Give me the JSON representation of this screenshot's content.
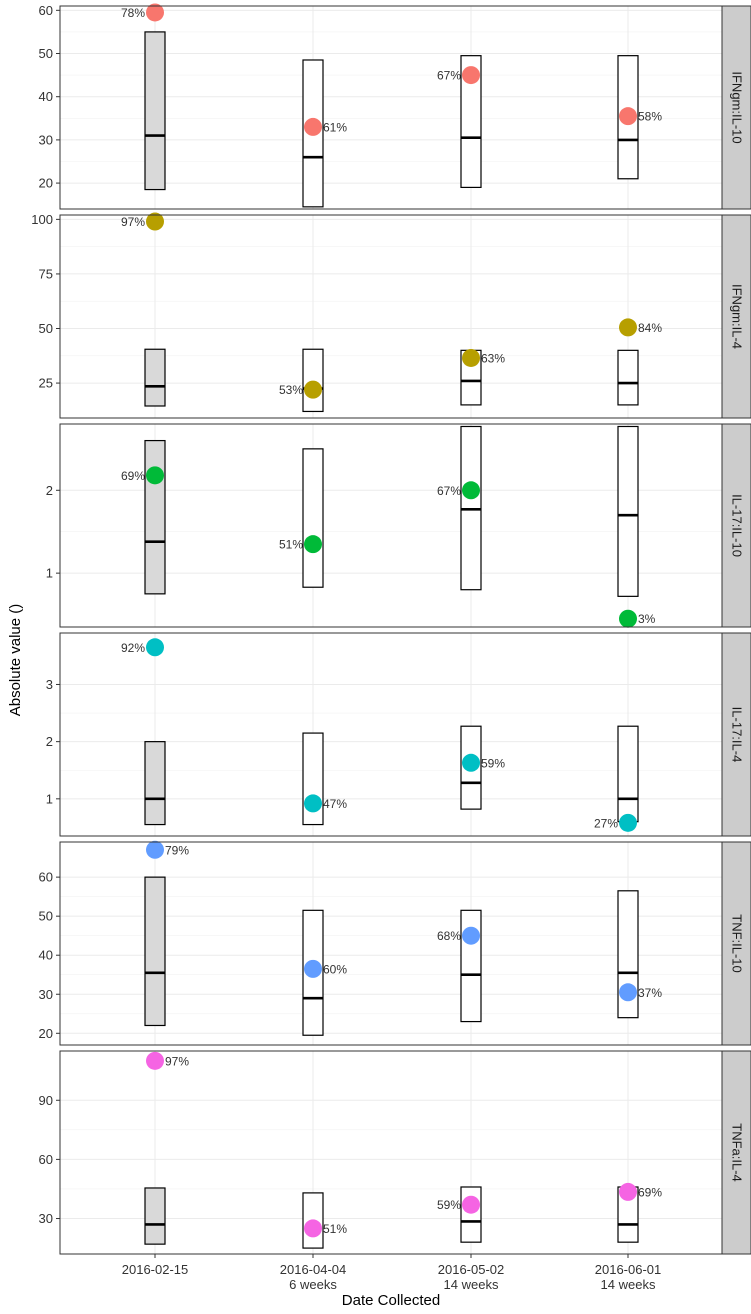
{
  "chart_data": {
    "type": "faceted-boxplot-scatter",
    "xlabel": "Date Collected",
    "ylabel": "Absolute value ()",
    "x_categories": [
      {
        "date": "2016-02-15",
        "sub": ""
      },
      {
        "date": "2016-04-04",
        "sub": "6 weeks"
      },
      {
        "date": "2016-05-02",
        "sub": "14 weeks"
      },
      {
        "date": "2016-06-01",
        "sub": "14 weeks"
      }
    ],
    "grid": true,
    "panels": [
      {
        "label": "IFNgm:IL-10",
        "color": "#F8766D",
        "ylim": [
          14,
          61
        ],
        "yticks": [
          20,
          30,
          40,
          50,
          60
        ],
        "boxes": [
          {
            "low": 18.5,
            "median": 31,
            "high": 55,
            "filled": true
          },
          {
            "low": 14.5,
            "median": 26,
            "high": 48.5,
            "filled": false
          },
          {
            "low": 19,
            "median": 30.5,
            "high": 49.5,
            "filled": false
          },
          {
            "low": 21,
            "median": 30,
            "high": 49.5,
            "filled": false
          }
        ],
        "points": [
          {
            "value": 59.5,
            "pct": "78%",
            "side": "left"
          },
          {
            "value": 33,
            "pct": "61%",
            "side": "right"
          },
          {
            "value": 45,
            "pct": "67%",
            "side": "left"
          },
          {
            "value": 35.5,
            "pct": "58%",
            "side": "right"
          }
        ]
      },
      {
        "label": "IFNgm:IL-4",
        "color": "#B79F00",
        "ylim": [
          9,
          102
        ],
        "yticks": [
          25,
          50,
          75,
          100
        ],
        "boxes": [
          {
            "low": 14.5,
            "median": 23.5,
            "high": 40.5,
            "filled": true
          },
          {
            "low": 12,
            "median": 22.5,
            "high": 40.5,
            "filled": false
          },
          {
            "low": 15,
            "median": 26,
            "high": 40,
            "filled": false
          },
          {
            "low": 15,
            "median": 25,
            "high": 40,
            "filled": false
          }
        ],
        "points": [
          {
            "value": 99,
            "pct": "97%",
            "side": "left"
          },
          {
            "value": 22,
            "pct": "53%",
            "side": "left"
          },
          {
            "value": 36.5,
            "pct": "63%",
            "side": "right"
          },
          {
            "value": 50.5,
            "pct": "84%",
            "side": "right"
          }
        ]
      },
      {
        "label": "IL-17:IL-10",
        "color": "#00BA38",
        "ylim": [
          0.35,
          2.8
        ],
        "yticks": [
          1,
          2
        ],
        "boxes": [
          {
            "low": 0.75,
            "median": 1.38,
            "high": 2.6,
            "filled": true
          },
          {
            "low": 0.83,
            "median": null,
            "high": 2.5,
            "filled": false
          },
          {
            "low": 0.8,
            "median": 1.77,
            "high": 2.77,
            "filled": false
          },
          {
            "low": 0.72,
            "median": 1.7,
            "high": 2.77,
            "filled": false
          }
        ],
        "points": [
          {
            "value": 2.18,
            "pct": "69%",
            "side": "left"
          },
          {
            "value": 1.35,
            "pct": "51%",
            "side": "left"
          },
          {
            "value": 2.0,
            "pct": "67%",
            "side": "left"
          },
          {
            "value": 0.45,
            "pct": "3%",
            "side": "right"
          }
        ]
      },
      {
        "label": "IL-17:IL-4",
        "color": "#00BFC4",
        "ylim": [
          0.35,
          3.9
        ],
        "yticks": [
          1,
          2,
          3
        ],
        "boxes": [
          {
            "low": 0.55,
            "median": 1.0,
            "high": 2.0,
            "filled": true
          },
          {
            "low": 0.55,
            "median": null,
            "high": 2.15,
            "filled": false
          },
          {
            "low": 0.82,
            "median": 1.28,
            "high": 2.27,
            "filled": false
          },
          {
            "low": 0.6,
            "median": 1.0,
            "high": 2.27,
            "filled": false
          }
        ],
        "points": [
          {
            "value": 3.65,
            "pct": "92%",
            "side": "left"
          },
          {
            "value": 0.92,
            "pct": "47%",
            "side": "right"
          },
          {
            "value": 1.63,
            "pct": "59%",
            "side": "right"
          },
          {
            "value": 0.58,
            "pct": "27%",
            "side": "left"
          }
        ]
      },
      {
        "label": "TNF:IL-10",
        "color": "#619CFF",
        "ylim": [
          17,
          69
        ],
        "yticks": [
          20,
          30,
          40,
          50,
          60
        ],
        "boxes": [
          {
            "low": 22,
            "median": 35.5,
            "high": 60,
            "filled": true
          },
          {
            "low": 19.5,
            "median": 29,
            "high": 51.5,
            "filled": false
          },
          {
            "low": 23,
            "median": 35,
            "high": 51.5,
            "filled": false
          },
          {
            "low": 24,
            "median": 35.5,
            "high": 56.5,
            "filled": false
          }
        ],
        "points": [
          {
            "value": 67,
            "pct": "79%",
            "side": "right"
          },
          {
            "value": 36.5,
            "pct": "60%",
            "side": "right"
          },
          {
            "value": 45,
            "pct": "68%",
            "side": "left"
          },
          {
            "value": 30.5,
            "pct": "37%",
            "side": "right"
          }
        ]
      },
      {
        "label": "TNFa:IL-4",
        "color": "#F564E3",
        "ylim": [
          12,
          115
        ],
        "yticks": [
          30,
          60,
          90
        ],
        "boxes": [
          {
            "low": 17,
            "median": 27,
            "high": 45.5,
            "filled": true
          },
          {
            "low": 15,
            "median": null,
            "high": 43,
            "filled": false
          },
          {
            "low": 18,
            "median": 28.5,
            "high": 46,
            "filled": false
          },
          {
            "low": 18,
            "median": 27,
            "high": 46,
            "filled": false
          }
        ],
        "points": [
          {
            "value": 110,
            "pct": "97%",
            "side": "right"
          },
          {
            "value": 25,
            "pct": "51%",
            "side": "right"
          },
          {
            "value": 37,
            "pct": "59%",
            "side": "left"
          },
          {
            "value": 43.5,
            "pct": "69%",
            "side": "right"
          }
        ]
      }
    ]
  }
}
